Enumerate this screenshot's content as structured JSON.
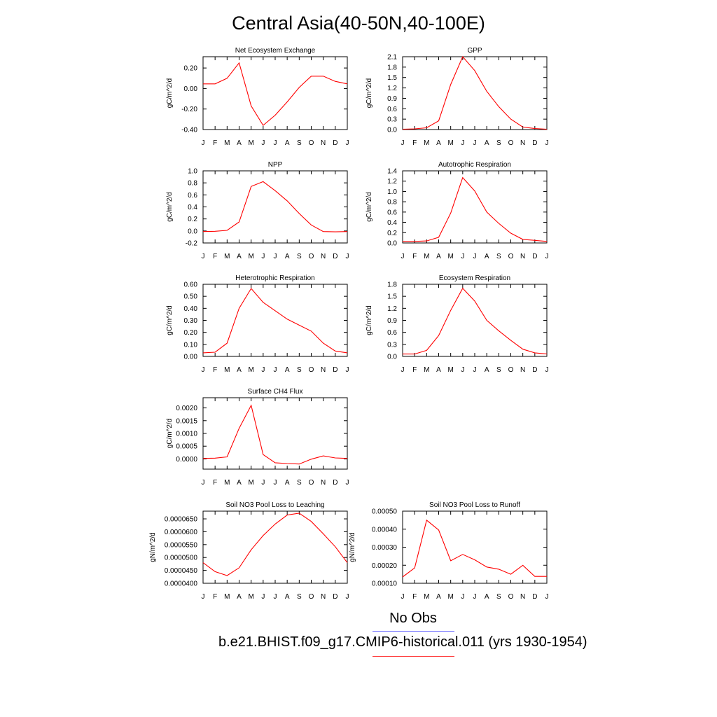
{
  "title": "Central Asia(40-50N,40-100E)",
  "legend": [
    {
      "label": "No Obs",
      "color": "#6a6aff"
    },
    {
      "label": "b.e21.BHIST.f09_g17.CMIP6-historical.011 (yrs 1930-1954)",
      "color": "#ff0000"
    }
  ],
  "chart_data": [
    {
      "type": "line",
      "title": "Net Ecosystem Exchange",
      "ylabel": "gC/m^2/d",
      "categories": [
        "J",
        "F",
        "M",
        "A",
        "M",
        "J",
        "J",
        "A",
        "S",
        "O",
        "N",
        "D",
        "J"
      ],
      "yticks": [
        "0.20",
        "0.00",
        "-0.20",
        "-0.40"
      ],
      "ylim": [
        -0.4,
        0.31
      ],
      "series": [
        {
          "color": "#ff0000",
          "values": [
            0.045,
            0.045,
            0.1,
            0.25,
            -0.17,
            -0.36,
            -0.26,
            -0.13,
            0.01,
            0.12,
            0.12,
            0.07,
            0.045
          ]
        }
      ]
    },
    {
      "type": "line",
      "title": "GPP",
      "ylabel": "gC/m^2/d",
      "categories": [
        "J",
        "F",
        "M",
        "A",
        "M",
        "J",
        "J",
        "A",
        "S",
        "O",
        "N",
        "D",
        "J"
      ],
      "yticks": [
        "2.1",
        "1.8",
        "1.5",
        "1.2",
        "0.9",
        "0.6",
        "0.3",
        "0.0"
      ],
      "ylim": [
        0,
        2.1
      ],
      "series": [
        {
          "color": "#ff0000",
          "values": [
            0.01,
            0.02,
            0.05,
            0.25,
            1.3,
            2.1,
            1.7,
            1.1,
            0.66,
            0.3,
            0.07,
            0.03,
            0.01
          ]
        }
      ]
    },
    {
      "type": "line",
      "title": "NPP",
      "ylabel": "gC/m^2/d",
      "categories": [
        "J",
        "F",
        "M",
        "A",
        "M",
        "J",
        "J",
        "A",
        "S",
        "O",
        "N",
        "D",
        "J"
      ],
      "yticks": [
        "1.0",
        "0.8",
        "0.6",
        "0.4",
        "0.2",
        "0.0",
        "-0.2"
      ],
      "ylim": [
        -0.2,
        1.0
      ],
      "series": [
        {
          "color": "#ff0000",
          "values": [
            -0.01,
            -0.005,
            0.01,
            0.15,
            0.74,
            0.82,
            0.67,
            0.5,
            0.29,
            0.1,
            -0.01,
            -0.015,
            -0.01
          ]
        }
      ]
    },
    {
      "type": "line",
      "title": "Autotrophic Respiration",
      "ylabel": "gC/m^2/d",
      "categories": [
        "J",
        "F",
        "M",
        "A",
        "M",
        "J",
        "J",
        "A",
        "S",
        "O",
        "N",
        "D",
        "J"
      ],
      "yticks": [
        "1.4",
        "1.2",
        "1.0",
        "0.8",
        "0.6",
        "0.4",
        "0.2",
        "0.0"
      ],
      "ylim": [
        0,
        1.4
      ],
      "series": [
        {
          "color": "#ff0000",
          "values": [
            0.03,
            0.03,
            0.04,
            0.11,
            0.58,
            1.27,
            1.01,
            0.6,
            0.38,
            0.19,
            0.07,
            0.05,
            0.03
          ]
        }
      ]
    },
    {
      "type": "line",
      "title": "Heterotrophic Respiration",
      "ylabel": "gC/m^2/d",
      "categories": [
        "J",
        "F",
        "M",
        "A",
        "M",
        "J",
        "J",
        "A",
        "S",
        "O",
        "N",
        "D",
        "J"
      ],
      "yticks": [
        "0.60",
        "0.50",
        "0.40",
        "0.30",
        "0.20",
        "0.10",
        "0.00"
      ],
      "ylim": [
        0,
        0.6
      ],
      "series": [
        {
          "color": "#ff0000",
          "values": [
            0.03,
            0.035,
            0.11,
            0.4,
            0.565,
            0.45,
            0.38,
            0.31,
            0.26,
            0.21,
            0.11,
            0.045,
            0.03
          ]
        }
      ]
    },
    {
      "type": "line",
      "title": "Ecosystem Respiration",
      "ylabel": "gC/m^2/d",
      "categories": [
        "J",
        "F",
        "M",
        "A",
        "M",
        "J",
        "J",
        "A",
        "S",
        "O",
        "N",
        "D",
        "J"
      ],
      "yticks": [
        "1.8",
        "1.5",
        "1.2",
        "0.9",
        "0.6",
        "0.3",
        "0.0"
      ],
      "ylim": [
        0,
        1.8
      ],
      "series": [
        {
          "color": "#ff0000",
          "values": [
            0.06,
            0.06,
            0.15,
            0.52,
            1.15,
            1.7,
            1.38,
            0.9,
            0.64,
            0.4,
            0.18,
            0.09,
            0.06
          ]
        }
      ]
    },
    {
      "type": "line",
      "title": "Surface CH4 Flux",
      "ylabel": "gC/m^2/d",
      "categories": [
        "J",
        "F",
        "M",
        "A",
        "M",
        "J",
        "J",
        "A",
        "S",
        "O",
        "N",
        "D",
        "J"
      ],
      "yticks": [
        "0.0020",
        "0.0015",
        "0.0010",
        "0.0005",
        "0.0000"
      ],
      "ylim": [
        -0.0004,
        0.0024
      ],
      "series": [
        {
          "color": "#ff0000",
          "values": [
            2e-05,
            3e-05,
            8e-05,
            0.0012,
            0.0021,
            0.00017,
            -0.00015,
            -0.00018,
            -0.0002,
            -1e-05,
            0.00012,
            4e-05,
            2e-05
          ]
        }
      ]
    },
    {
      "type": "line",
      "title": "Soil NO3 Pool Loss to Leaching",
      "ylabel": "gN/m^2/d",
      "categories": [
        "J",
        "F",
        "M",
        "A",
        "M",
        "J",
        "J",
        "A",
        "S",
        "O",
        "N",
        "D",
        "J"
      ],
      "yticks": [
        "0.0000650",
        "0.0000600",
        "0.0000550",
        "0.0000500",
        "0.0000450",
        "0.0000400"
      ],
      "ylim": [
        4e-05,
        6.8e-05
      ],
      "series": [
        {
          "color": "#ff0000",
          "values": [
            4.8e-05,
            4.45e-05,
            4.3e-05,
            4.6e-05,
            5.3e-05,
            5.85e-05,
            6.3e-05,
            6.65e-05,
            6.72e-05,
            6.4e-05,
            5.92e-05,
            5.42e-05,
            4.8e-05
          ]
        }
      ]
    },
    {
      "type": "line",
      "title": "Soil NO3 Pool Loss to Runoff",
      "ylabel": "gN/m^2/d",
      "categories": [
        "J",
        "F",
        "M",
        "A",
        "M",
        "J",
        "J",
        "A",
        "S",
        "O",
        "N",
        "D",
        "J"
      ],
      "yticks": [
        "0.00050",
        "0.00040",
        "0.00030",
        "0.00020",
        "0.00010"
      ],
      "ylim": [
        0.0001,
        0.0005
      ],
      "series": [
        {
          "color": "#ff0000",
          "values": [
            0.000135,
            0.000185,
            0.00045,
            0.000395,
            0.000225,
            0.00026,
            0.00023,
            0.00019,
            0.000178,
            0.00015,
            0.0002,
            0.000138,
            0.000138
          ]
        }
      ]
    }
  ]
}
